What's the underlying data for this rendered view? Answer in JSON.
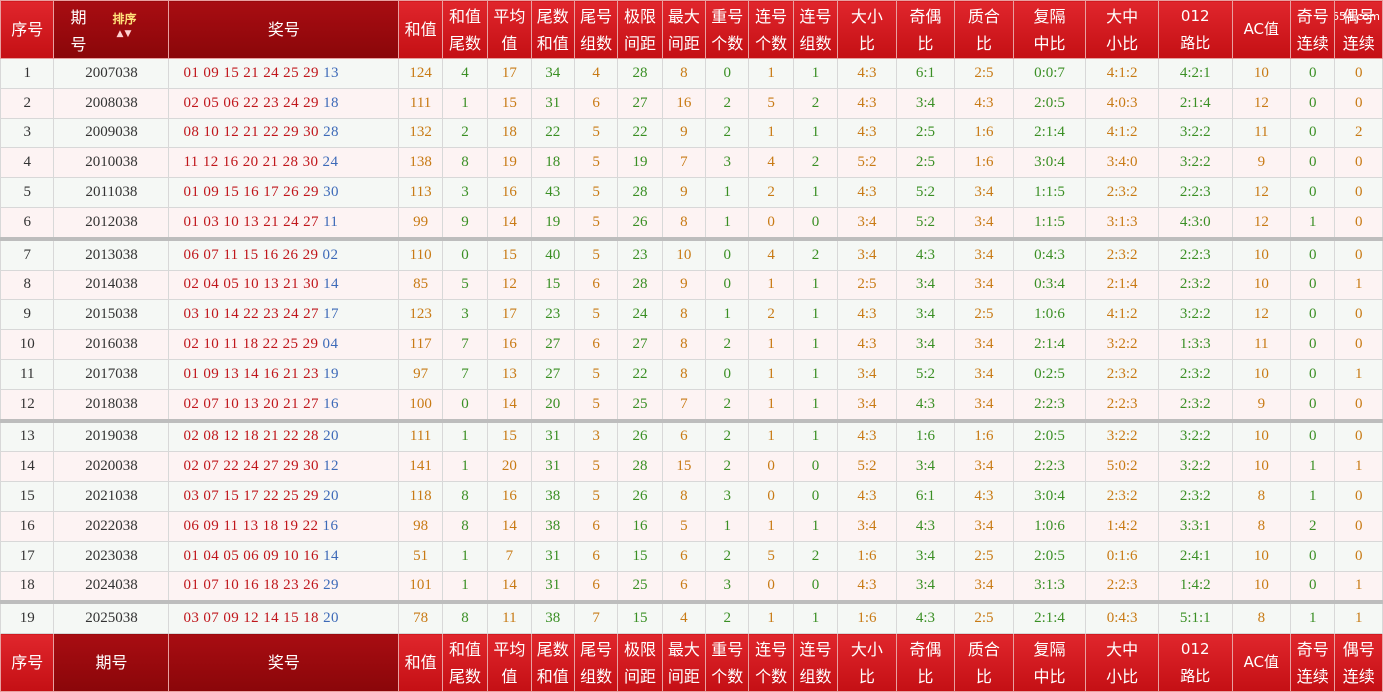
{
  "site": "97654.com",
  "headers": [
    {
      "lines": [
        "序号"
      ]
    },
    {
      "lines": [
        "期",
        "号"
      ],
      "sort_label": "排序"
    },
    {
      "lines": [
        "奖号"
      ]
    },
    {
      "lines": [
        "和值"
      ]
    },
    {
      "lines": [
        "和值",
        "尾数"
      ]
    },
    {
      "lines": [
        "平均",
        "值"
      ]
    },
    {
      "lines": [
        "尾数",
        "和值"
      ]
    },
    {
      "lines": [
        "尾号",
        "组数"
      ]
    },
    {
      "lines": [
        "极限",
        "间距"
      ]
    },
    {
      "lines": [
        "最大",
        "间距"
      ]
    },
    {
      "lines": [
        "重号",
        "个数"
      ]
    },
    {
      "lines": [
        "连号",
        "个数"
      ]
    },
    {
      "lines": [
        "连号",
        "组数"
      ]
    },
    {
      "lines": [
        "大小",
        "比"
      ]
    },
    {
      "lines": [
        "奇偶",
        "比"
      ]
    },
    {
      "lines": [
        "质合",
        "比"
      ]
    },
    {
      "lines": [
        "复隔",
        "中比"
      ]
    },
    {
      "lines": [
        "大中",
        "小比"
      ]
    },
    {
      "lines": [
        "012",
        "路比"
      ]
    },
    {
      "lines": [
        "AC值"
      ]
    },
    {
      "lines": [
        "奇号",
        "连续"
      ]
    },
    {
      "lines": [
        "偶号",
        "连续"
      ]
    }
  ],
  "footer_headers": [
    {
      "lines": [
        "序号"
      ]
    },
    {
      "lines": [
        "期号"
      ]
    },
    {
      "lines": [
        "奖号"
      ]
    },
    {
      "lines": [
        "和值"
      ]
    },
    {
      "lines": [
        "和值",
        "尾数"
      ]
    },
    {
      "lines": [
        "平均",
        "值"
      ]
    },
    {
      "lines": [
        "尾数",
        "和值"
      ]
    },
    {
      "lines": [
        "尾号",
        "组数"
      ]
    },
    {
      "lines": [
        "极限",
        "间距"
      ]
    },
    {
      "lines": [
        "最大",
        "间距"
      ]
    },
    {
      "lines": [
        "重号",
        "个数"
      ]
    },
    {
      "lines": [
        "连号",
        "个数"
      ]
    },
    {
      "lines": [
        "连号",
        "组数"
      ]
    },
    {
      "lines": [
        "大小",
        "比"
      ]
    },
    {
      "lines": [
        "奇偶",
        "比"
      ]
    },
    {
      "lines": [
        "质合",
        "比"
      ]
    },
    {
      "lines": [
        "复隔",
        "中比"
      ]
    },
    {
      "lines": [
        "大中",
        "小比"
      ]
    },
    {
      "lines": [
        "012",
        "路比"
      ]
    },
    {
      "lines": [
        "AC值"
      ]
    },
    {
      "lines": [
        "奇号",
        "连续"
      ]
    },
    {
      "lines": [
        "偶号",
        "连续"
      ]
    }
  ],
  "rows": [
    {
      "seq": "1",
      "period": "2007038",
      "nums": "01 09 15 21 24 25 29",
      "special": "13",
      "sum": "124",
      "sum_tail": "4",
      "avg": "17",
      "tail_sum": "34",
      "tail_groups": "4",
      "limit_span": "28",
      "max_span": "8",
      "repeat": "0",
      "consec_count": "1",
      "consec_groups": "1",
      "big_small": "4:3",
      "odd_even": "6:1",
      "prime_comp": "2:5",
      "repeat_gap_mid": "0:0:7",
      "big_mid_small": "4:1:2",
      "road_012": "4:2:1",
      "ac": "10",
      "odd_consec": "0",
      "even_consec": "0"
    },
    {
      "seq": "2",
      "period": "2008038",
      "nums": "02 05 06 22 23 24 29",
      "special": "18",
      "sum": "111",
      "sum_tail": "1",
      "avg": "15",
      "tail_sum": "31",
      "tail_groups": "6",
      "limit_span": "27",
      "max_span": "16",
      "repeat": "2",
      "consec_count": "5",
      "consec_groups": "2",
      "big_small": "4:3",
      "odd_even": "3:4",
      "prime_comp": "4:3",
      "repeat_gap_mid": "2:0:5",
      "big_mid_small": "4:0:3",
      "road_012": "2:1:4",
      "ac": "12",
      "odd_consec": "0",
      "even_consec": "0"
    },
    {
      "seq": "3",
      "period": "2009038",
      "nums": "08 10 12 21 22 29 30",
      "special": "28",
      "sum": "132",
      "sum_tail": "2",
      "avg": "18",
      "tail_sum": "22",
      "tail_groups": "5",
      "limit_span": "22",
      "max_span": "9",
      "repeat": "2",
      "consec_count": "1",
      "consec_groups": "1",
      "big_small": "4:3",
      "odd_even": "2:5",
      "prime_comp": "1:6",
      "repeat_gap_mid": "2:1:4",
      "big_mid_small": "4:1:2",
      "road_012": "3:2:2",
      "ac": "11",
      "odd_consec": "0",
      "even_consec": "2"
    },
    {
      "seq": "4",
      "period": "2010038",
      "nums": "11 12 16 20 21 28 30",
      "special": "24",
      "sum": "138",
      "sum_tail": "8",
      "avg": "19",
      "tail_sum": "18",
      "tail_groups": "5",
      "limit_span": "19",
      "max_span": "7",
      "repeat": "3",
      "consec_count": "4",
      "consec_groups": "2",
      "big_small": "5:2",
      "odd_even": "2:5",
      "prime_comp": "1:6",
      "repeat_gap_mid": "3:0:4",
      "big_mid_small": "3:4:0",
      "road_012": "3:2:2",
      "ac": "9",
      "odd_consec": "0",
      "even_consec": "0"
    },
    {
      "seq": "5",
      "period": "2011038",
      "nums": "01 09 15 16 17 26 29",
      "special": "30",
      "sum": "113",
      "sum_tail": "3",
      "avg": "16",
      "tail_sum": "43",
      "tail_groups": "5",
      "limit_span": "28",
      "max_span": "9",
      "repeat": "1",
      "consec_count": "2",
      "consec_groups": "1",
      "big_small": "4:3",
      "odd_even": "5:2",
      "prime_comp": "3:4",
      "repeat_gap_mid": "1:1:5",
      "big_mid_small": "2:3:2",
      "road_012": "2:2:3",
      "ac": "12",
      "odd_consec": "0",
      "even_consec": "0"
    },
    {
      "seq": "6",
      "period": "2012038",
      "nums": "01 03 10 13 21 24 27",
      "special": "11",
      "sum": "99",
      "sum_tail": "9",
      "avg": "14",
      "tail_sum": "19",
      "tail_groups": "5",
      "limit_span": "26",
      "max_span": "8",
      "repeat": "1",
      "consec_count": "0",
      "consec_groups": "0",
      "big_small": "3:4",
      "odd_even": "5:2",
      "prime_comp": "3:4",
      "repeat_gap_mid": "1:1:5",
      "big_mid_small": "3:1:3",
      "road_012": "4:3:0",
      "ac": "12",
      "odd_consec": "1",
      "even_consec": "0"
    },
    {
      "seq": "7",
      "period": "2013038",
      "nums": "06 07 11 15 16 26 29",
      "special": "02",
      "sum": "110",
      "sum_tail": "0",
      "avg": "15",
      "tail_sum": "40",
      "tail_groups": "5",
      "limit_span": "23",
      "max_span": "10",
      "repeat": "0",
      "consec_count": "4",
      "consec_groups": "2",
      "big_small": "3:4",
      "odd_even": "4:3",
      "prime_comp": "3:4",
      "repeat_gap_mid": "0:4:3",
      "big_mid_small": "2:3:2",
      "road_012": "2:2:3",
      "ac": "10",
      "odd_consec": "0",
      "even_consec": "0",
      "gap": true
    },
    {
      "seq": "8",
      "period": "2014038",
      "nums": "02 04 05 10 13 21 30",
      "special": "14",
      "sum": "85",
      "sum_tail": "5",
      "avg": "12",
      "tail_sum": "15",
      "tail_groups": "6",
      "limit_span": "28",
      "max_span": "9",
      "repeat": "0",
      "consec_count": "1",
      "consec_groups": "1",
      "big_small": "2:5",
      "odd_even": "3:4",
      "prime_comp": "3:4",
      "repeat_gap_mid": "0:3:4",
      "big_mid_small": "2:1:4",
      "road_012": "2:3:2",
      "ac": "10",
      "odd_consec": "0",
      "even_consec": "1"
    },
    {
      "seq": "9",
      "period": "2015038",
      "nums": "03 10 14 22 23 24 27",
      "special": "17",
      "sum": "123",
      "sum_tail": "3",
      "avg": "17",
      "tail_sum": "23",
      "tail_groups": "5",
      "limit_span": "24",
      "max_span": "8",
      "repeat": "1",
      "consec_count": "2",
      "consec_groups": "1",
      "big_small": "4:3",
      "odd_even": "3:4",
      "prime_comp": "2:5",
      "repeat_gap_mid": "1:0:6",
      "big_mid_small": "4:1:2",
      "road_012": "3:2:2",
      "ac": "12",
      "odd_consec": "0",
      "even_consec": "0"
    },
    {
      "seq": "10",
      "period": "2016038",
      "nums": "02 10 11 18 22 25 29",
      "special": "04",
      "sum": "117",
      "sum_tail": "7",
      "avg": "16",
      "tail_sum": "27",
      "tail_groups": "6",
      "limit_span": "27",
      "max_span": "8",
      "repeat": "2",
      "consec_count": "1",
      "consec_groups": "1",
      "big_small": "4:3",
      "odd_even": "3:4",
      "prime_comp": "3:4",
      "repeat_gap_mid": "2:1:4",
      "big_mid_small": "3:2:2",
      "road_012": "1:3:3",
      "ac": "11",
      "odd_consec": "0",
      "even_consec": "0"
    },
    {
      "seq": "11",
      "period": "2017038",
      "nums": "01 09 13 14 16 21 23",
      "special": "19",
      "sum": "97",
      "sum_tail": "7",
      "avg": "13",
      "tail_sum": "27",
      "tail_groups": "5",
      "limit_span": "22",
      "max_span": "8",
      "repeat": "0",
      "consec_count": "1",
      "consec_groups": "1",
      "big_small": "3:4",
      "odd_even": "5:2",
      "prime_comp": "3:4",
      "repeat_gap_mid": "0:2:5",
      "big_mid_small": "2:3:2",
      "road_012": "2:3:2",
      "ac": "10",
      "odd_consec": "0",
      "even_consec": "1"
    },
    {
      "seq": "12",
      "period": "2018038",
      "nums": "02 07 10 13 20 21 27",
      "special": "16",
      "sum": "100",
      "sum_tail": "0",
      "avg": "14",
      "tail_sum": "20",
      "tail_groups": "5",
      "limit_span": "25",
      "max_span": "7",
      "repeat": "2",
      "consec_count": "1",
      "consec_groups": "1",
      "big_small": "3:4",
      "odd_even": "4:3",
      "prime_comp": "3:4",
      "repeat_gap_mid": "2:2:3",
      "big_mid_small": "2:2:3",
      "road_012": "2:3:2",
      "ac": "9",
      "odd_consec": "0",
      "even_consec": "0"
    },
    {
      "seq": "13",
      "period": "2019038",
      "nums": "02 08 12 18 21 22 28",
      "special": "20",
      "sum": "111",
      "sum_tail": "1",
      "avg": "15",
      "tail_sum": "31",
      "tail_groups": "3",
      "limit_span": "26",
      "max_span": "6",
      "repeat": "2",
      "consec_count": "1",
      "consec_groups": "1",
      "big_small": "4:3",
      "odd_even": "1:6",
      "prime_comp": "1:6",
      "repeat_gap_mid": "2:0:5",
      "big_mid_small": "3:2:2",
      "road_012": "3:2:2",
      "ac": "10",
      "odd_consec": "0",
      "even_consec": "0",
      "gap": true
    },
    {
      "seq": "14",
      "period": "2020038",
      "nums": "02 07 22 24 27 29 30",
      "special": "12",
      "sum": "141",
      "sum_tail": "1",
      "avg": "20",
      "tail_sum": "31",
      "tail_groups": "5",
      "limit_span": "28",
      "max_span": "15",
      "repeat": "2",
      "consec_count": "0",
      "consec_groups": "0",
      "big_small": "5:2",
      "odd_even": "3:4",
      "prime_comp": "3:4",
      "repeat_gap_mid": "2:2:3",
      "big_mid_small": "5:0:2",
      "road_012": "3:2:2",
      "ac": "10",
      "odd_consec": "1",
      "even_consec": "1"
    },
    {
      "seq": "15",
      "period": "2021038",
      "nums": "03 07 15 17 22 25 29",
      "special": "20",
      "sum": "118",
      "sum_tail": "8",
      "avg": "16",
      "tail_sum": "38",
      "tail_groups": "5",
      "limit_span": "26",
      "max_span": "8",
      "repeat": "3",
      "consec_count": "0",
      "consec_groups": "0",
      "big_small": "4:3",
      "odd_even": "6:1",
      "prime_comp": "4:3",
      "repeat_gap_mid": "3:0:4",
      "big_mid_small": "2:3:2",
      "road_012": "2:3:2",
      "ac": "8",
      "odd_consec": "1",
      "even_consec": "0"
    },
    {
      "seq": "16",
      "period": "2022038",
      "nums": "06 09 11 13 18 19 22",
      "special": "16",
      "sum": "98",
      "sum_tail": "8",
      "avg": "14",
      "tail_sum": "38",
      "tail_groups": "6",
      "limit_span": "16",
      "max_span": "5",
      "repeat": "1",
      "consec_count": "1",
      "consec_groups": "1",
      "big_small": "3:4",
      "odd_even": "4:3",
      "prime_comp": "3:4",
      "repeat_gap_mid": "1:0:6",
      "big_mid_small": "1:4:2",
      "road_012": "3:3:1",
      "ac": "8",
      "odd_consec": "2",
      "even_consec": "0"
    },
    {
      "seq": "17",
      "period": "2023038",
      "nums": "01 04 05 06 09 10 16",
      "special": "14",
      "sum": "51",
      "sum_tail": "1",
      "avg": "7",
      "tail_sum": "31",
      "tail_groups": "6",
      "limit_span": "15",
      "max_span": "6",
      "repeat": "2",
      "consec_count": "5",
      "consec_groups": "2",
      "big_small": "1:6",
      "odd_even": "3:4",
      "prime_comp": "2:5",
      "repeat_gap_mid": "2:0:5",
      "big_mid_small": "0:1:6",
      "road_012": "2:4:1",
      "ac": "10",
      "odd_consec": "0",
      "even_consec": "0"
    },
    {
      "seq": "18",
      "period": "2024038",
      "nums": "01 07 10 16 18 23 26",
      "special": "29",
      "sum": "101",
      "sum_tail": "1",
      "avg": "14",
      "tail_sum": "31",
      "tail_groups": "6",
      "limit_span": "25",
      "max_span": "6",
      "repeat": "3",
      "consec_count": "0",
      "consec_groups": "0",
      "big_small": "4:3",
      "odd_even": "3:4",
      "prime_comp": "3:4",
      "repeat_gap_mid": "3:1:3",
      "big_mid_small": "2:2:3",
      "road_012": "1:4:2",
      "ac": "10",
      "odd_consec": "0",
      "even_consec": "1"
    },
    {
      "seq": "19",
      "period": "2025038",
      "nums": "03 07 09 12 14 15 18",
      "special": "20",
      "sum": "78",
      "sum_tail": "8",
      "avg": "11",
      "tail_sum": "38",
      "tail_groups": "7",
      "limit_span": "15",
      "max_span": "4",
      "repeat": "2",
      "consec_count": "1",
      "consec_groups": "1",
      "big_small": "1:6",
      "odd_even": "4:3",
      "prime_comp": "2:5",
      "repeat_gap_mid": "2:1:4",
      "big_mid_small": "0:4:3",
      "road_012": "5:1:1",
      "ac": "8",
      "odd_consec": "1",
      "even_consec": "1",
      "gap": true
    }
  ],
  "column_keys": [
    "sum",
    "sum_tail",
    "avg",
    "tail_sum",
    "tail_groups",
    "limit_span",
    "max_span",
    "repeat",
    "consec_count",
    "consec_groups",
    "big_small",
    "odd_even",
    "prime_comp",
    "repeat_gap_mid",
    "big_mid_small",
    "road_012",
    "ac",
    "odd_consec",
    "even_consec"
  ],
  "column_colors": [
    "o",
    "g",
    "o",
    "g",
    "o",
    "g",
    "o",
    "g",
    "o",
    "g",
    "o",
    "g",
    "o",
    "g",
    "o",
    "g",
    "o",
    "g",
    "o"
  ],
  "colors": {
    "header_red": "#d0181e",
    "header_dark_red": "#990a0d",
    "number_red": "#c0161b",
    "special_blue": "#3d6ab8",
    "value_green": "#3a8f24",
    "value_orange": "#c87a14"
  }
}
